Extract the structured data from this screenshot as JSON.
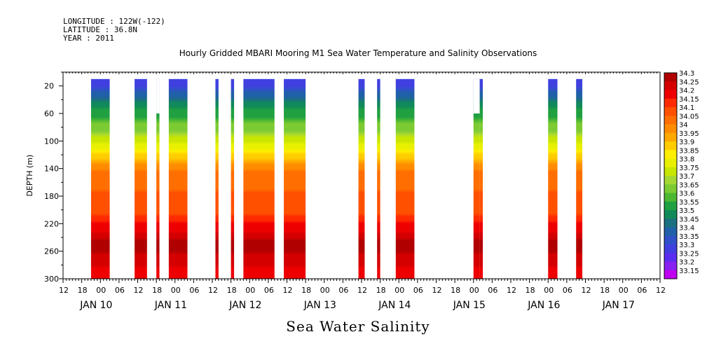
{
  "header": {
    "longitude": "LONGITUDE : 122W(-122)",
    "latitude": "LATITUDE : 36.8N",
    "year": "YEAR : 2011"
  },
  "chart_data": {
    "type": "heatmap",
    "title": "Hourly Gridded MBARI Mooring M1 Sea Water Temperature and Salinity Observations",
    "subtitle": "Sea Water Salinity",
    "ylabel": "DEPTH (m)",
    "xlabel": "",
    "y_reversed": true,
    "ylim": [
      0,
      300
    ],
    "yticks": [
      20,
      60,
      100,
      140,
      180,
      220,
      260,
      300
    ],
    "x_hours_label": [
      "12",
      "18",
      "00",
      "06",
      "12",
      "18",
      "00",
      "06",
      "12",
      "18",
      "00",
      "06",
      "12",
      "18",
      "00",
      "06",
      "12",
      "18",
      "00",
      "06",
      "12",
      "18",
      "00",
      "06",
      "12",
      "18",
      "00",
      "06",
      "12",
      "18",
      "00",
      "06",
      "12"
    ],
    "x_date_labels": [
      "JAN 10",
      "JAN 11",
      "JAN 12",
      "JAN 13",
      "JAN 14",
      "JAN 15",
      "JAN 16",
      "JAN 17"
    ],
    "xlim": [
      "2011-01-09T12:00",
      "2011-01-17T12:00"
    ],
    "colorbar": {
      "levels": [
        "34.3",
        "34.25",
        "34.2",
        "34.15",
        "34.1",
        "34.05",
        "34",
        "33.95",
        "33.9",
        "33.85",
        "33.8",
        "33.75",
        "33.7",
        "33.65",
        "33.6",
        "33.55",
        "33.5",
        "33.45",
        "33.4",
        "33.35",
        "33.3",
        "33.25",
        "33.2",
        "33.15"
      ],
      "colors": [
        "#b00000",
        "#d40000",
        "#ee0000",
        "#ff2a00",
        "#ff5000",
        "#ff6e00",
        "#ff8c00",
        "#ffa800",
        "#ffcc00",
        "#ffee00",
        "#e8f000",
        "#c8e600",
        "#a6d832",
        "#7ccb32",
        "#4cb832",
        "#20a040",
        "#108a5a",
        "#1a7080",
        "#2060a8",
        "#3050c8",
        "#4040e0",
        "#5a2ef0",
        "#8820f0",
        "#c000f0"
      ]
    },
    "depth_profile": [
      {
        "depth": 20,
        "value": 33.3
      },
      {
        "depth": 40,
        "value": 33.45
      },
      {
        "depth": 60,
        "value": 33.55
      },
      {
        "depth": 80,
        "value": 33.65
      },
      {
        "depth": 100,
        "value": 33.75
      },
      {
        "depth": 115,
        "value": 33.85
      },
      {
        "depth": 130,
        "value": 33.95
      },
      {
        "depth": 145,
        "value": 34.05
      },
      {
        "depth": 200,
        "value": 34.1
      },
      {
        "depth": 225,
        "value": 34.2
      },
      {
        "depth": 250,
        "value": 34.3
      },
      {
        "depth": 290,
        "value": 34.2
      }
    ],
    "data_segments": [
      {
        "start": "2011-01-09T21:00",
        "end": "2011-01-10T03:00",
        "top_depth": 20
      },
      {
        "start": "2011-01-10T11:00",
        "end": "2011-01-10T15:00",
        "top_depth": 20
      },
      {
        "start": "2011-01-10T18:00",
        "end": "2011-01-10T19:00",
        "top_depth": 60
      },
      {
        "start": "2011-01-10T22:00",
        "end": "2011-01-11T04:00",
        "top_depth": 20
      },
      {
        "start": "2011-01-11T13:00",
        "end": "2011-01-11T14:00",
        "top_depth": 20
      },
      {
        "start": "2011-01-11T18:00",
        "end": "2011-01-11T19:00",
        "top_depth": 20
      },
      {
        "start": "2011-01-11T22:00",
        "end": "2011-01-12T08:00",
        "top_depth": 20
      },
      {
        "start": "2011-01-12T11:00",
        "end": "2011-01-12T18:00",
        "top_depth": 20
      },
      {
        "start": "2011-01-13T11:00",
        "end": "2011-01-13T13:00",
        "top_depth": 20
      },
      {
        "start": "2011-01-13T17:00",
        "end": "2011-01-13T18:00",
        "top_depth": 20
      },
      {
        "start": "2011-01-13T23:00",
        "end": "2011-01-14T05:00",
        "top_depth": 20
      },
      {
        "start": "2011-01-15T00:00",
        "end": "2011-01-15T02:00",
        "top_depth": 60
      },
      {
        "start": "2011-01-15T02:00",
        "end": "2011-01-15T03:00",
        "top_depth": 20
      },
      {
        "start": "2011-01-16T00:00",
        "end": "2011-01-16T03:00",
        "top_depth": 20
      },
      {
        "start": "2011-01-16T09:00",
        "end": "2011-01-16T11:00",
        "top_depth": 20
      }
    ]
  }
}
